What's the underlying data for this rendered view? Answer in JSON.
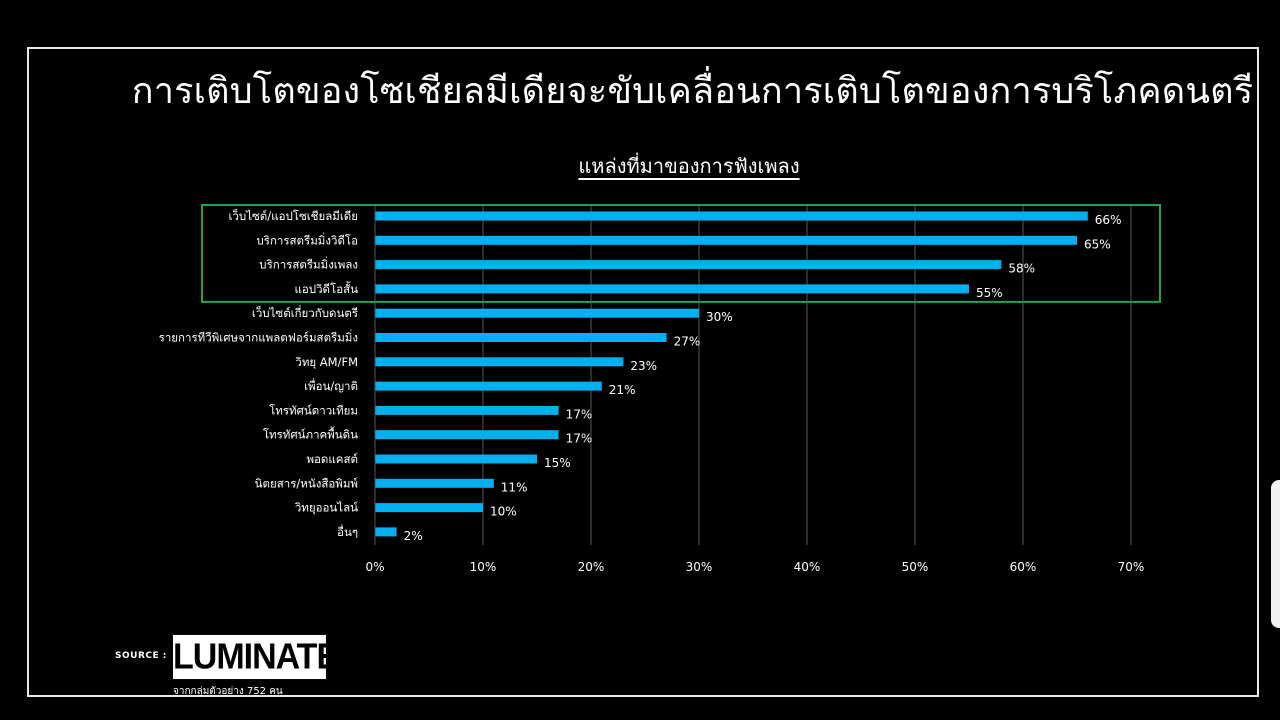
{
  "slide": {
    "title": "การเติบโตของโซเชียลมีเดียจะขับเคลื่อนการเติบโตของการบริโภคดนตรี",
    "source_label": "SOURCE :",
    "logo_text": "LUMINATE",
    "sample_note": "จากกลุ่มตัวอย่าง 752 คน"
  },
  "colors": {
    "bar": "#00b0f0",
    "highlight_box": "#1fa34a",
    "grid": "#555555",
    "background": "#000000",
    "text": "#ffffff"
  },
  "chart_data": {
    "type": "bar",
    "orientation": "horizontal",
    "title": "แหล่งที่มาของการฟังเพลง",
    "categories": [
      "เว็บไซต์/แอปโซเชียลมีเดีย",
      "บริการสตรีมมิ่งวิดีโอ",
      "บริการสตรีมมิ่งเพลง",
      "แอปวิดีโอสั้น",
      "เว็บไซต์เกี่ยวกับดนตรี",
      "รายการทีวีพิเศษจากแพลตฟอร์มสตรีมมิ่ง",
      "วิทยุ AM/FM",
      "เพื่อน/ญาติ",
      "โทรทัศน์ดาวเทียม",
      "โทรทัศน์ภาคพื้นดิน",
      "พอดแคสต์",
      "นิตยสาร/หนังสือพิมพ์",
      "วิทยุออนไลน์",
      "อื่นๆ"
    ],
    "values": [
      66,
      65,
      58,
      55,
      30,
      27,
      23,
      21,
      17,
      17,
      15,
      11,
      10,
      2
    ],
    "value_labels": [
      "66%",
      "65%",
      "58%",
      "55%",
      "30%",
      "27%",
      "23%",
      "21%",
      "17%",
      "17%",
      "15%",
      "11%",
      "10%",
      "2%"
    ],
    "xlim": [
      0,
      70
    ],
    "x_ticks": [
      "0%",
      "10%",
      "20%",
      "30%",
      "40%",
      "50%",
      "60%",
      "70%"
    ],
    "grid": true,
    "highlighted_categories": [
      0,
      1,
      2,
      3
    ]
  }
}
